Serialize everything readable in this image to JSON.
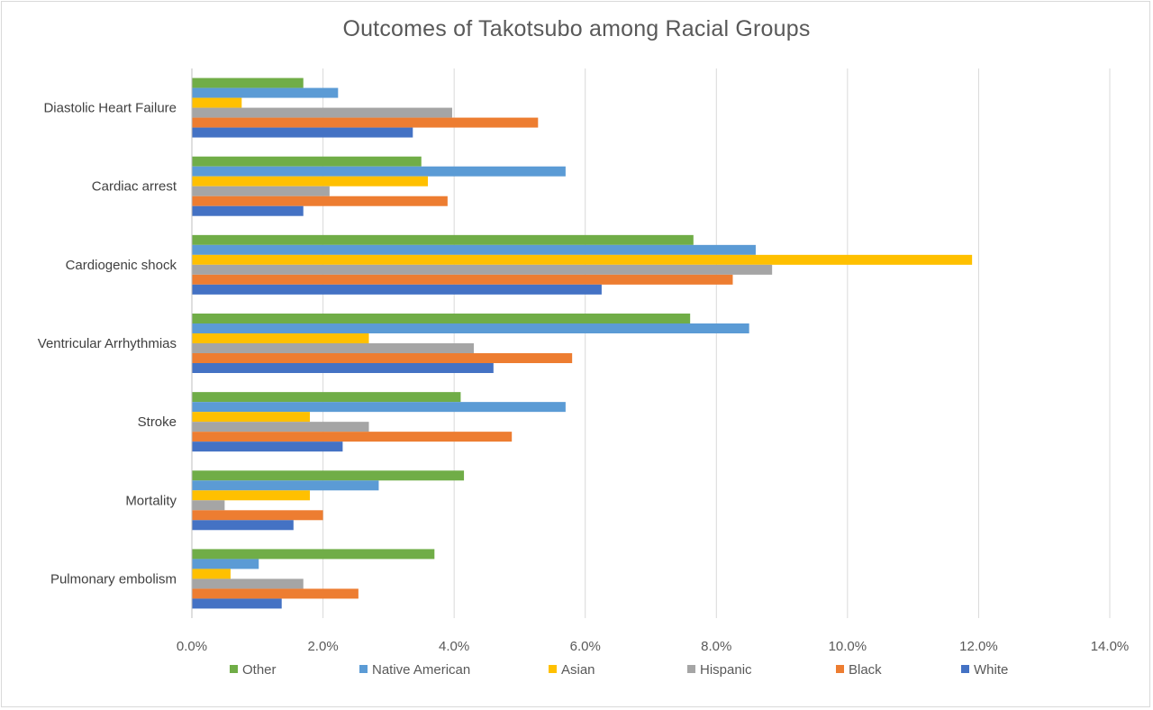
{
  "chart_data": {
    "type": "bar",
    "orientation": "horizontal",
    "title": "Outcomes of  Takotsubo among Racial Groups",
    "categories": [
      "Diastolic Heart Failure",
      "Cardiac arrest",
      "Cardiogenic shock",
      "Ventricular Arrhythmias",
      "Stroke",
      "Mortality",
      "Pulmonary embolism"
    ],
    "series": [
      {
        "name": "Other",
        "color": "#70ad47",
        "values": [
          1.7,
          3.5,
          7.65,
          7.6,
          4.1,
          4.15,
          3.7
        ]
      },
      {
        "name": "Native American",
        "color": "#5b9bd5",
        "values": [
          2.23,
          5.7,
          8.6,
          8.5,
          5.7,
          2.85,
          1.02
        ]
      },
      {
        "name": "Asian",
        "color": "#ffc000",
        "values": [
          0.76,
          3.6,
          11.9,
          2.7,
          1.8,
          1.8,
          0.59
        ]
      },
      {
        "name": "Hispanic",
        "color": "#a5a5a5",
        "values": [
          3.97,
          2.1,
          8.85,
          4.3,
          2.7,
          0.5,
          1.7
        ]
      },
      {
        "name": "Black",
        "color": "#ed7d31",
        "values": [
          5.28,
          3.9,
          8.25,
          5.8,
          4.88,
          2.0,
          2.54
        ]
      },
      {
        "name": "White",
        "color": "#4472c4",
        "values": [
          3.37,
          1.7,
          6.25,
          4.6,
          2.3,
          1.55,
          1.37
        ]
      }
    ],
    "xlim": [
      0,
      14
    ],
    "x_ticks": [
      "0.0%",
      "2.0%",
      "4.0%",
      "6.0%",
      "8.0%",
      "10.0%",
      "12.0%",
      "14.0%"
    ],
    "xlabel": "",
    "ylabel": "",
    "grid": "vertical",
    "legend_position": "bottom"
  }
}
